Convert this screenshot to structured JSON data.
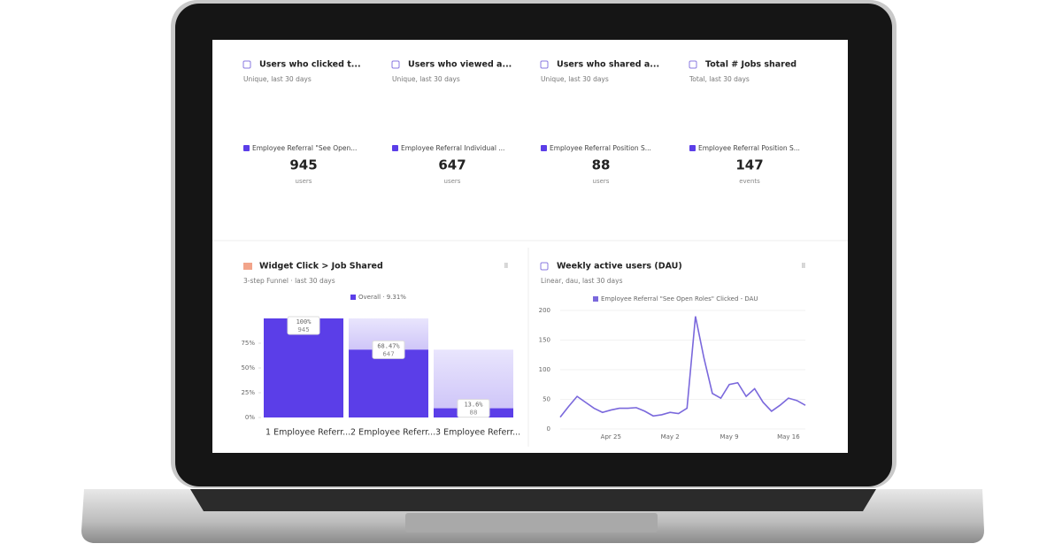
{
  "cards": [
    {
      "title": "Users who clicked t...",
      "subtitle": "Unique, last 30 days",
      "legend": "Employee Referral \"See Open...",
      "value": "945",
      "unit": "users"
    },
    {
      "title": "Users who viewed a...",
      "subtitle": "Unique, last 30 days",
      "legend": "Employee Referral Individual ...",
      "value": "647",
      "unit": "users"
    },
    {
      "title": "Users who shared a...",
      "subtitle": "Unique, last 30 days",
      "legend": "Employee Referral Position S...",
      "value": "88",
      "unit": "users"
    },
    {
      "title": "Total # Jobs shared",
      "subtitle": "Total, last 30 days",
      "legend": "Employee Referral Position S...",
      "value": "147",
      "unit": "events"
    }
  ],
  "chart_data": [
    {
      "type": "funnel",
      "title": "Widget Click > Job Shared",
      "subtitle": "3-step Funnel · last 30 days",
      "legend": "Overall · 9.31%",
      "categories": [
        "1  Employee Referr...",
        "2  Employee Referr...",
        "3  Employee Referr..."
      ],
      "values": [
        100,
        68.47,
        9.31
      ],
      "step_conversion": [
        "100%",
        "68.47%",
        "13.6%"
      ],
      "counts": [
        "945",
        "647",
        "88"
      ],
      "color": "#5b3ee8",
      "ylim": [
        0,
        100
      ],
      "yticks": [
        {
          "value": 0,
          "label": "0%"
        },
        {
          "value": 25,
          "label": "25%"
        },
        {
          "value": 50,
          "label": "50%"
        },
        {
          "value": 75,
          "label": "75%"
        }
      ]
    },
    {
      "type": "line",
      "title": "Weekly active users (DAU)",
      "subtitle": "Linear, dau, last 30 days",
      "categories": [
        null,
        null,
        null,
        null,
        null,
        null,
        "Apr 25",
        null,
        null,
        null,
        null,
        null,
        null,
        "May 2",
        null,
        null,
        null,
        null,
        null,
        null,
        "May 9",
        null,
        null,
        null,
        null,
        null,
        null,
        "May 16",
        null,
        null
      ],
      "series": [
        {
          "name": "Employee Referral \"See Open Roles\" Clicked - DAU",
          "color": "#7a68dc",
          "values": [
            20,
            38,
            55,
            45,
            35,
            28,
            32,
            35,
            35,
            36,
            30,
            22,
            24,
            28,
            26,
            35,
            190,
            120,
            60,
            52,
            75,
            78,
            55,
            68,
            45,
            30,
            40,
            52,
            48,
            40
          ]
        }
      ],
      "ylim": [
        0,
        200
      ],
      "yticks": [
        0,
        50,
        100,
        150,
        200
      ],
      "grid": true
    }
  ]
}
